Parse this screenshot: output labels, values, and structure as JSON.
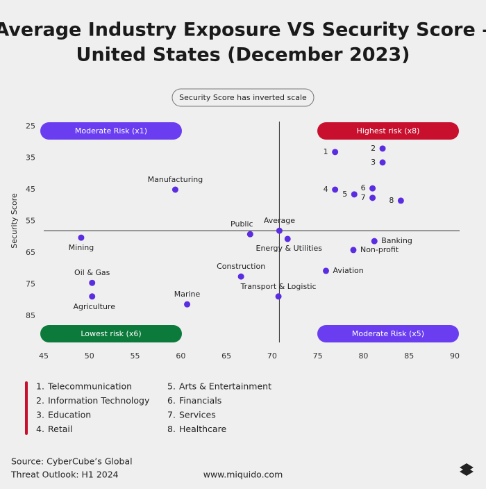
{
  "chart_data": {
    "type": "scatter",
    "title_lines": [
      "Average Industry Exposure VS Security Score –",
      "United States (December 2023)"
    ],
    "note": "Security Score has inverted scale",
    "y_label": "Security Score",
    "xlim": [
      45,
      90
    ],
    "xticks": [
      45,
      50,
      55,
      60,
      65,
      70,
      75,
      80,
      85,
      90
    ],
    "ylim": [
      25,
      85
    ],
    "yticks": [
      25,
      35,
      45,
      55,
      65,
      75,
      85
    ],
    "y_inverted": true,
    "color": "#5a2de0",
    "quadrants": [
      {
        "label": "Moderate Risk (x1)",
        "color": "#6a3ef0"
      },
      {
        "label": "Highest risk (x8)",
        "color": "#c8102e"
      },
      {
        "label": "Lowest risk (x6)",
        "color": "#0b7a3b"
      },
      {
        "label": "Moderate Risk (x5)",
        "color": "#6a3ef0"
      }
    ],
    "points": [
      {
        "label": "1",
        "x": 76.9,
        "y": 33.1
      },
      {
        "label": "2",
        "x": 82.1,
        "y": 32.0
      },
      {
        "label": "3",
        "x": 82.1,
        "y": 36.4
      },
      {
        "label": "4",
        "x": 76.9,
        "y": 45.0
      },
      {
        "label": "5",
        "x": 79.0,
        "y": 46.5
      },
      {
        "label": "6",
        "x": 81.0,
        "y": 44.6
      },
      {
        "label": "7",
        "x": 81.0,
        "y": 47.6
      },
      {
        "label": "8",
        "x": 84.1,
        "y": 48.5
      },
      {
        "label": "Manufacturing",
        "x": 59.4,
        "y": 45.0
      },
      {
        "label": "Average",
        "x": 70.8,
        "y": 58.0
      },
      {
        "label": "Public",
        "x": 67.6,
        "y": 59.1
      },
      {
        "label": "Energy & Utilities",
        "x": 71.7,
        "y": 60.6
      },
      {
        "label": "Mining",
        "x": 49.1,
        "y": 60.2
      },
      {
        "label": "Banking",
        "x": 81.2,
        "y": 61.3
      },
      {
        "label": "Non-profit",
        "x": 78.9,
        "y": 64.1
      },
      {
        "label": "Aviation",
        "x": 75.9,
        "y": 70.7
      },
      {
        "label": "Construction",
        "x": 66.6,
        "y": 72.5
      },
      {
        "label": "Oil & Gas",
        "x": 50.3,
        "y": 74.5
      },
      {
        "label": "Transport & Logistic",
        "x": 70.7,
        "y": 78.8
      },
      {
        "label": "Agriculture",
        "x": 50.3,
        "y": 78.8
      },
      {
        "label": "Marine",
        "x": 60.7,
        "y": 81.3
      }
    ],
    "legend_color": "#c8102e",
    "legend": [
      {
        "number": "1.",
        "name": "Telecommunication"
      },
      {
        "number": "2.",
        "name": "Information Technology"
      },
      {
        "number": "3.",
        "name": "Education"
      },
      {
        "number": "4.",
        "name": "Retail"
      },
      {
        "number": "5.",
        "name": "Arts & Entertainment"
      },
      {
        "number": "6.",
        "name": "Financials"
      },
      {
        "number": "7.",
        "name": "Services"
      },
      {
        "number": "8.",
        "name": "Healthcare"
      }
    ],
    "source_lines": [
      "Source: CyberCube’s Global",
      "Threat Outlook: H1 2024"
    ],
    "website": "www.miquido.com"
  }
}
